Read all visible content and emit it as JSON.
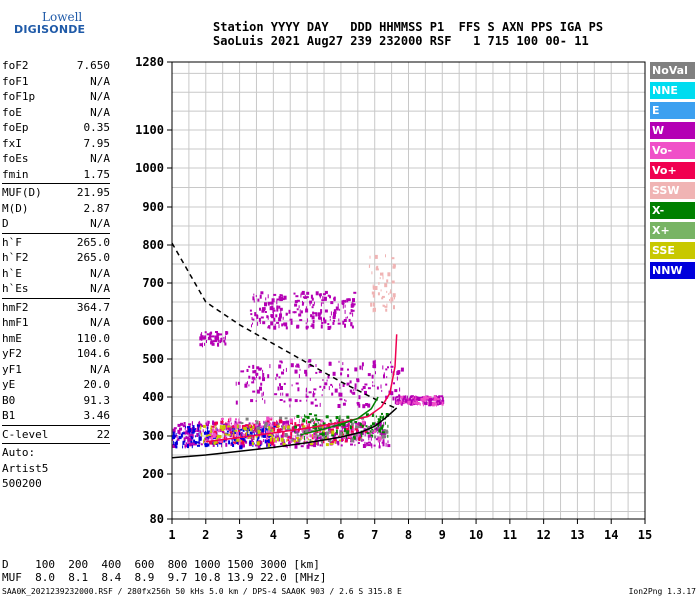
{
  "logo": {
    "line1": "Lowell",
    "line2": "DIGISONDE"
  },
  "header": {
    "line1": "Station YYYY DAY   DDD HHMMSS P1  FFS S AXN PPS IGA PS",
    "line2": "SaoLuis 2021 Aug27 239 232000 RSF   1 715 100 00- 11"
  },
  "params": {
    "group1": [
      {
        "label": "foF2",
        "value": "7.650"
      },
      {
        "label": "foF1",
        "value": "N/A"
      },
      {
        "label": "foF1p",
        "value": "N/A"
      },
      {
        "label": "foE",
        "value": "N/A"
      },
      {
        "label": "foEp",
        "value": "0.35"
      },
      {
        "label": "fxI",
        "value": "7.95"
      },
      {
        "label": "foEs",
        "value": "N/A"
      },
      {
        "label": "fmin",
        "value": "1.75"
      }
    ],
    "group2": [
      {
        "label": "MUF(D)",
        "value": "21.95"
      },
      {
        "label": "M(D)",
        "value": "2.87"
      },
      {
        "label": "D",
        "value": "N/A"
      }
    ],
    "group3": [
      {
        "label": "h`F",
        "value": "265.0"
      },
      {
        "label": "h`F2",
        "value": "265.0"
      },
      {
        "label": "h`E",
        "value": "N/A"
      },
      {
        "label": "h`Es",
        "value": "N/A"
      }
    ],
    "group4": [
      {
        "label": "hmF2",
        "value": "364.7"
      },
      {
        "label": "hmF1",
        "value": "N/A"
      },
      {
        "label": "hmE",
        "value": "110.0"
      },
      {
        "label": "yF2",
        "value": "104.6"
      },
      {
        "label": "yF1",
        "value": "N/A"
      },
      {
        "label": "yE",
        "value": "20.0"
      },
      {
        "label": "B0",
        "value": "91.3"
      },
      {
        "label": "B1",
        "value": "3.46"
      }
    ],
    "group5": [
      {
        "label": "C-level",
        "value": "22"
      }
    ],
    "notes": [
      "Auto:",
      "Artist5",
      "500200"
    ]
  },
  "legend": [
    {
      "label": "NoVal",
      "color": "#808080"
    },
    {
      "label": "NNE",
      "color": "#00dcf0"
    },
    {
      "label": "E",
      "color": "#3ca0f0"
    },
    {
      "label": "W",
      "color": "#b400b4"
    },
    {
      "label": "Vo-",
      "color": "#f050c8"
    },
    {
      "label": "Vo+",
      "color": "#f00050"
    },
    {
      "label": "SSW",
      "color": "#f0b4b4"
    },
    {
      "label": "X-",
      "color": "#008000"
    },
    {
      "label": "X+",
      "color": "#78b464"
    },
    {
      "label": "SSE",
      "color": "#c8c800"
    },
    {
      "label": "NNW",
      "color": "#0000dc"
    }
  ],
  "chart_data": {
    "type": "scatter",
    "title": "",
    "xlabel": "",
    "ylabel": "",
    "xlim": [
      1,
      15
    ],
    "x_ticks": [
      1,
      2,
      3,
      4,
      5,
      6,
      7,
      8,
      9,
      10,
      11,
      12,
      13,
      14,
      15
    ],
    "y_ticks": [
      80,
      200,
      300,
      400,
      500,
      600,
      700,
      800,
      900,
      1000,
      1100,
      1280
    ],
    "y_range": [
      80,
      1280
    ],
    "y_scale": "nonlinear (ionogram virtual height)",
    "grid": true,
    "clusters": [
      {
        "color": "#b400b4",
        "x": [
          3.3,
          6.4
        ],
        "y": [
          585,
          680
        ],
        "n": 220
      },
      {
        "color": "#b400b4",
        "x": [
          1.8,
          2.6
        ],
        "y": [
          540,
          575
        ],
        "n": 50
      },
      {
        "color": "#f0b4b4",
        "x": [
          6.8,
          7.6
        ],
        "y": [
          630,
          780
        ],
        "n": 50
      },
      {
        "color": "#b400b4",
        "x": [
          2.8,
          7.8
        ],
        "y": [
          380,
          500
        ],
        "n": 200
      },
      {
        "color": "#b400b4",
        "x": [
          1.0,
          7.4
        ],
        "y": [
          275,
          340
        ],
        "n": 450
      },
      {
        "color": "#0000dc",
        "x": [
          1.0,
          4.0
        ],
        "y": [
          275,
          330
        ],
        "n": 150
      },
      {
        "color": "#f00050",
        "x": [
          2.0,
          6.8
        ],
        "y": [
          285,
          345
        ],
        "n": 160
      },
      {
        "color": "#f050c8",
        "x": [
          2.0,
          7.2
        ],
        "y": [
          290,
          350
        ],
        "n": 120
      },
      {
        "color": "#008000",
        "x": [
          4.6,
          7.4
        ],
        "y": [
          300,
          360
        ],
        "n": 90
      },
      {
        "color": "#c8c800",
        "x": [
          1.8,
          6.0
        ],
        "y": [
          280,
          330
        ],
        "n": 90
      },
      {
        "color": "#b400b4",
        "x": [
          7.6,
          9.0
        ],
        "y": [
          385,
          405
        ],
        "n": 120
      },
      {
        "color": "#f050c8",
        "x": [
          7.6,
          9.0
        ],
        "y": [
          385,
          405
        ],
        "n": 40
      },
      {
        "color": "#808080",
        "x": [
          2.8,
          7.4
        ],
        "y": [
          290,
          350
        ],
        "n": 80
      }
    ],
    "curves": [
      {
        "name": "",
        "color": "#000000",
        "style": "solid",
        "x": [
          1.0,
          2.0,
          3.0,
          4.0,
          5.0,
          6.0,
          6.6,
          7.0,
          7.3,
          7.5,
          7.65
        ],
        "y": [
          243,
          250,
          260,
          270,
          282,
          297,
          310,
          325,
          345,
          360,
          372
        ]
      },
      {
        "name": "",
        "color": "#000000",
        "style": "dashed",
        "x": [
          1.0,
          2.0,
          3.0,
          4.0,
          5.0,
          6.0,
          7.0,
          7.6
        ],
        "y": [
          805,
          650,
          590,
          540,
          490,
          440,
          395,
          372
        ]
      },
      {
        "name": "",
        "color": "#f00050",
        "style": "solid",
        "x": [
          2.0,
          3.0,
          4.0,
          5.0,
          6.0,
          6.8,
          7.2,
          7.45,
          7.6,
          7.65
        ],
        "y": [
          285,
          296,
          308,
          320,
          335,
          350,
          375,
          410,
          480,
          565
        ]
      },
      {
        "name": "",
        "color": "#008000",
        "style": "solid",
        "x": [
          4.8,
          5.5,
          6.0,
          6.5,
          6.9,
          7.1
        ],
        "y": [
          303,
          318,
          330,
          345,
          370,
          400
        ]
      }
    ]
  },
  "bottom": {
    "line1": "D    100  200  400  600  800 1000 1500 3000 [km]",
    "line2": "MUF  8.0  8.1  8.4  8.9  9.7 10.8 13.9 22.0 [MHz]"
  },
  "footer": "SAA0K_2021239232000.RSF / 280fx256h 50 kHs 5.0 km / DPS-4 SAA0K 903 / 2.6 S 315.8 E",
  "version": "Ion2Png 1.3.17"
}
